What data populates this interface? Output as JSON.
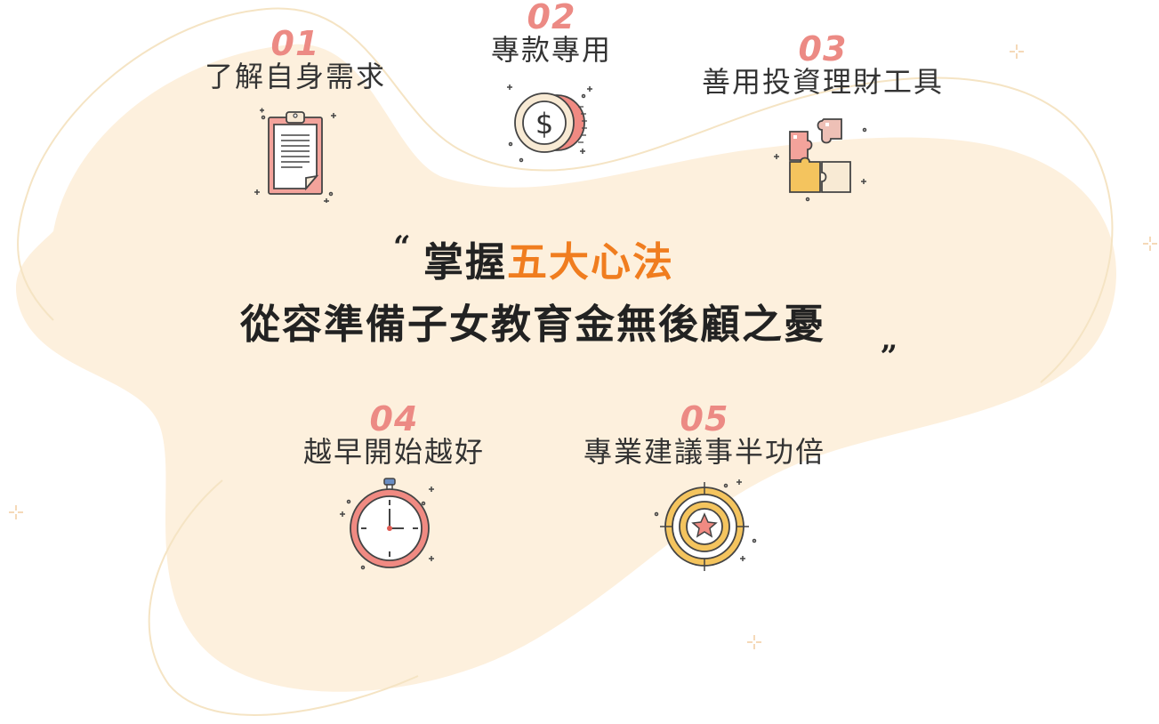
{
  "steps": [
    {
      "num": "01",
      "title": "了解自身需求",
      "icon": "clipboard-icon"
    },
    {
      "num": "02",
      "title": "專款專用",
      "icon": "dollar-coin-icon"
    },
    {
      "num": "03",
      "title": "善用投資理財工具",
      "icon": "puzzle-icon"
    },
    {
      "num": "04",
      "title": "越早開始越好",
      "icon": "stopwatch-icon"
    },
    {
      "num": "05",
      "title": "專業建議事半功倍",
      "icon": "target-star-icon"
    }
  ],
  "headline": {
    "open_quote": "“",
    "line1_prefix": "掌握",
    "line1_accent": "五大心法",
    "line2": "從容準備子女教育金無後顧之憂",
    "close_quote": "„"
  },
  "colors": {
    "blob": "#fdf0dd",
    "accent": "#f07d1f",
    "number": "#ec8a84",
    "text": "#333333",
    "outline": "#f5e4c4"
  }
}
